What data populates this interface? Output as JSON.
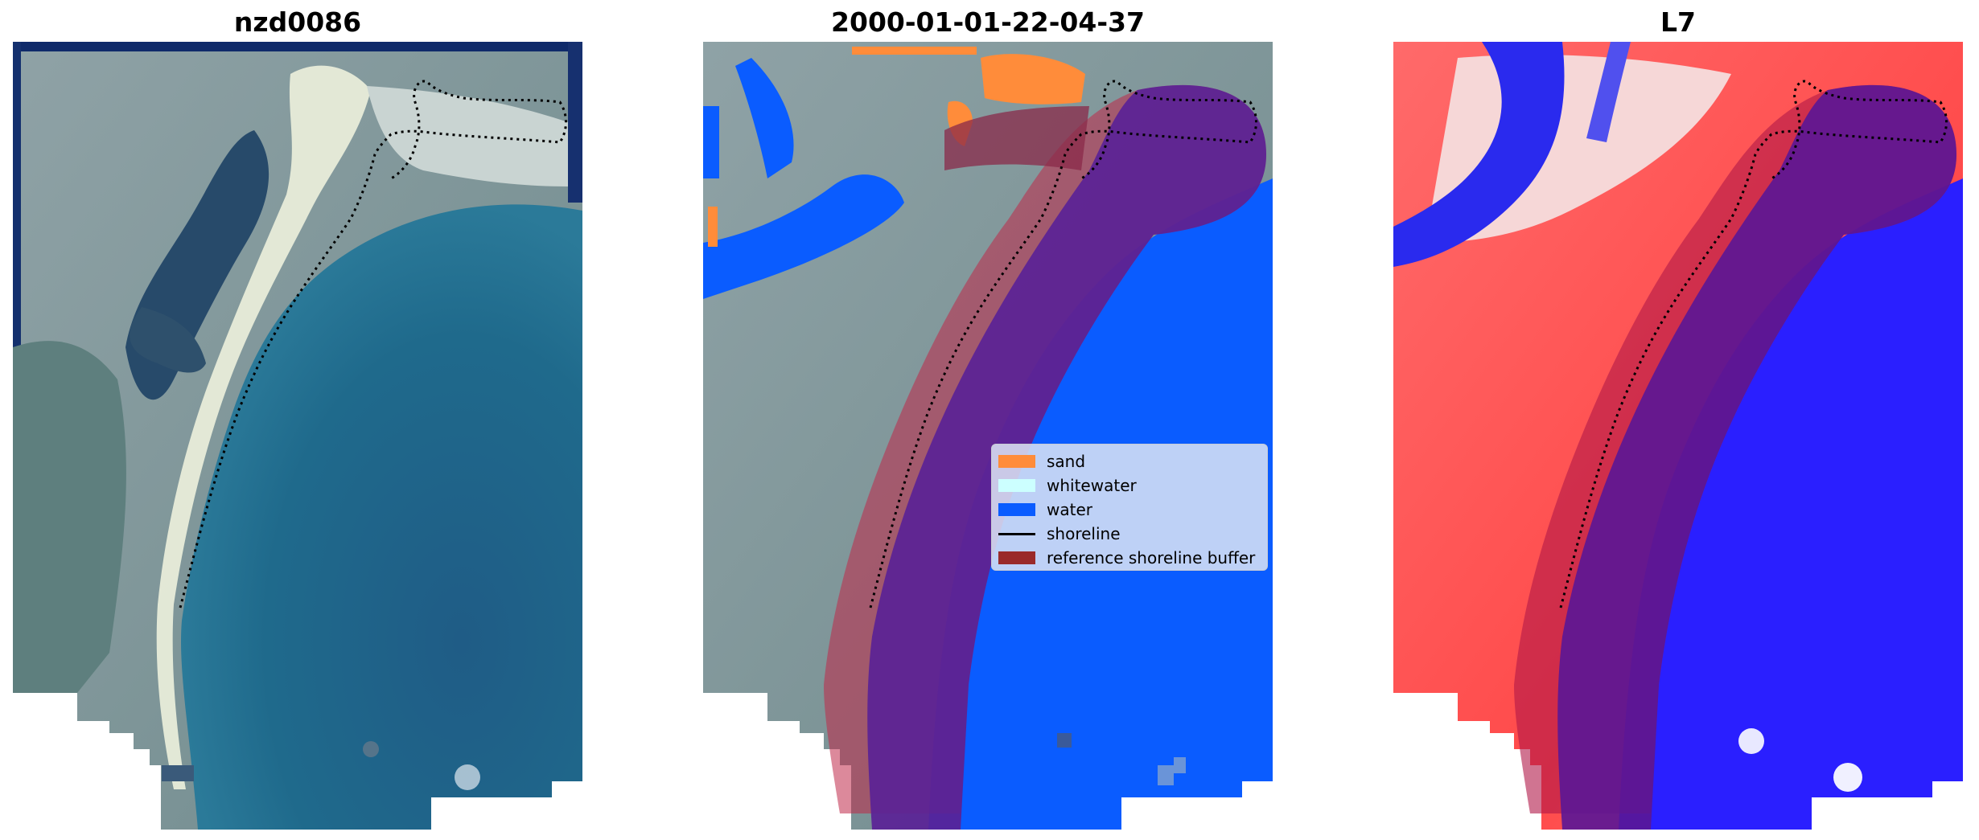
{
  "titles": {
    "left": "nzd0086",
    "middle": "2000-01-01-22-04-37",
    "right": "L7"
  },
  "legend": {
    "items": [
      {
        "label": "sand",
        "color": "#ff8c3a",
        "kind": "patch"
      },
      {
        "label": "whitewater",
        "color": "#ccffff",
        "kind": "patch"
      },
      {
        "label": "water",
        "color": "#0a5cff",
        "kind": "patch"
      },
      {
        "label": "shoreline",
        "color": "#000000",
        "kind": "line"
      },
      {
        "label": "reference shoreline buffer",
        "color": "#9a2a2a",
        "kind": "patch"
      }
    ]
  },
  "colors": {
    "buffer": "#9a2a2a",
    "water_class": "#0a5cff",
    "sand_class": "#ff8c3a",
    "index_high": "#ff2020",
    "index_low": "#1a1aff"
  }
}
